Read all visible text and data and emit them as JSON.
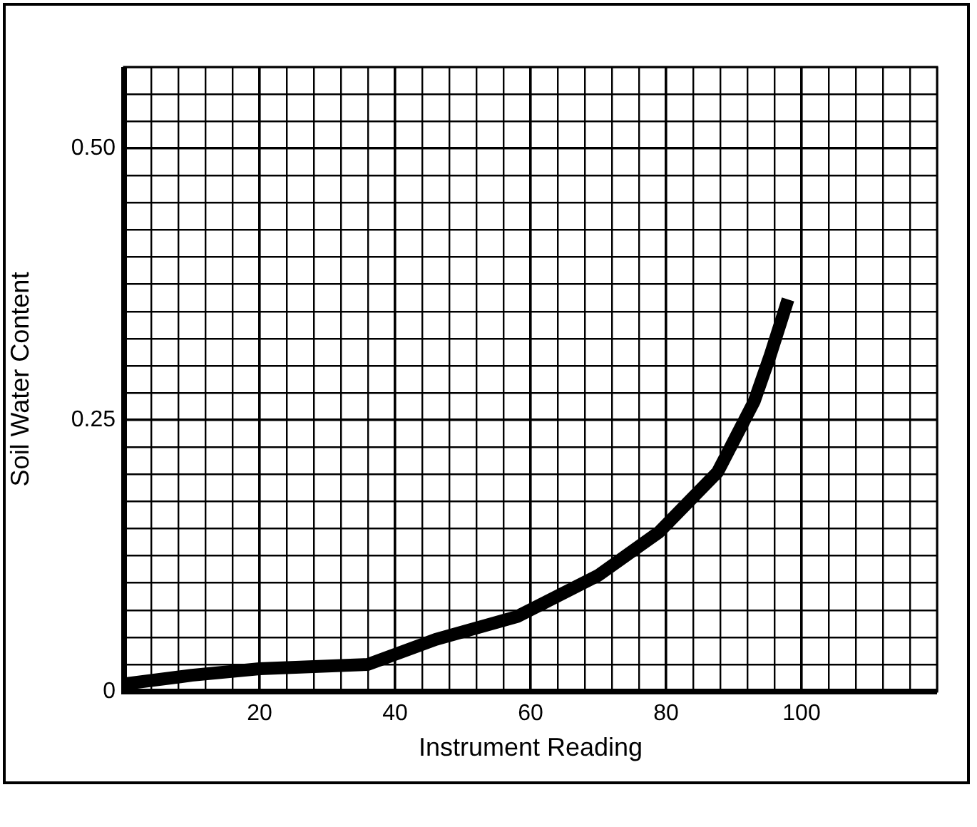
{
  "chart_data": {
    "type": "line",
    "xlabel": "Instrument Reading",
    "ylabel": "Soil Water Content",
    "x": [
      0,
      10,
      20,
      36,
      46,
      58,
      70,
      79,
      87.6,
      93,
      95.4,
      98
    ],
    "series": [
      {
        "color": "#000000",
        "values": [
          0.007,
          0.015,
          0.021,
          0.025,
          0.048,
          0.069,
          0.107,
          0.147,
          0.202,
          0.267,
          0.31,
          0.361
        ]
      }
    ],
    "xlim": [
      0,
      120
    ],
    "xticks": [
      {
        "value": 0,
        "label": null
      },
      {
        "value": 4,
        "label": null
      },
      {
        "value": 8,
        "label": null
      },
      {
        "value": 12,
        "label": null
      },
      {
        "value": 16,
        "label": null
      },
      20,
      {
        "value": 24,
        "label": null
      },
      {
        "value": 28,
        "label": null
      },
      {
        "value": 32,
        "label": null
      },
      {
        "value": 36,
        "label": null
      },
      40,
      {
        "value": 44,
        "label": null
      },
      {
        "value": 48,
        "label": null
      },
      {
        "value": 52,
        "label": null
      },
      {
        "value": 56,
        "label": null
      },
      60,
      {
        "value": 64,
        "label": null
      },
      {
        "value": 68,
        "label": null
      },
      {
        "value": 72,
        "label": null
      },
      {
        "value": 76,
        "label": null
      },
      80,
      {
        "value": 84,
        "label": null
      },
      {
        "value": 88,
        "label": null
      },
      {
        "value": 92,
        "label": null
      },
      {
        "value": 96,
        "label": null
      },
      100,
      {
        "value": 104,
        "label": null
      },
      {
        "value": 108,
        "label": null
      },
      {
        "value": 112,
        "label": null
      },
      {
        "value": 116,
        "label": null
      },
      {
        "value": 120,
        "label": null
      }
    ],
    "ylim": [
      0,
      0.575
    ],
    "yticks": [
      0,
      {
        "value": 0.025,
        "label": null
      },
      {
        "value": 0.05,
        "label": null
      },
      {
        "value": 0.075,
        "label": null
      },
      {
        "value": 0.1,
        "label": null
      },
      {
        "value": 0.125,
        "label": null
      },
      {
        "value": 0.15,
        "label": null
      },
      {
        "value": 0.175,
        "label": null
      },
      {
        "value": 0.2,
        "label": null
      },
      {
        "value": 0.225,
        "label": null
      },
      0.25,
      {
        "value": 0.275,
        "label": null
      },
      {
        "value": 0.3,
        "label": null
      },
      {
        "value": 0.325,
        "label": null
      },
      {
        "value": 0.35,
        "label": null
      },
      {
        "value": 0.375,
        "label": null
      },
      {
        "value": 0.4,
        "label": null
      },
      {
        "value": 0.425,
        "label": null
      },
      {
        "value": 0.45,
        "label": null
      },
      {
        "value": 0.475,
        "label": null
      },
      {
        "value": 0.5,
        "label": "0.50"
      },
      {
        "value": 0.525,
        "label": null
      },
      {
        "value": 0.55,
        "label": null
      },
      {
        "value": 0.575,
        "label": null
      }
    ],
    "grid": true,
    "line_style": "solid"
  }
}
